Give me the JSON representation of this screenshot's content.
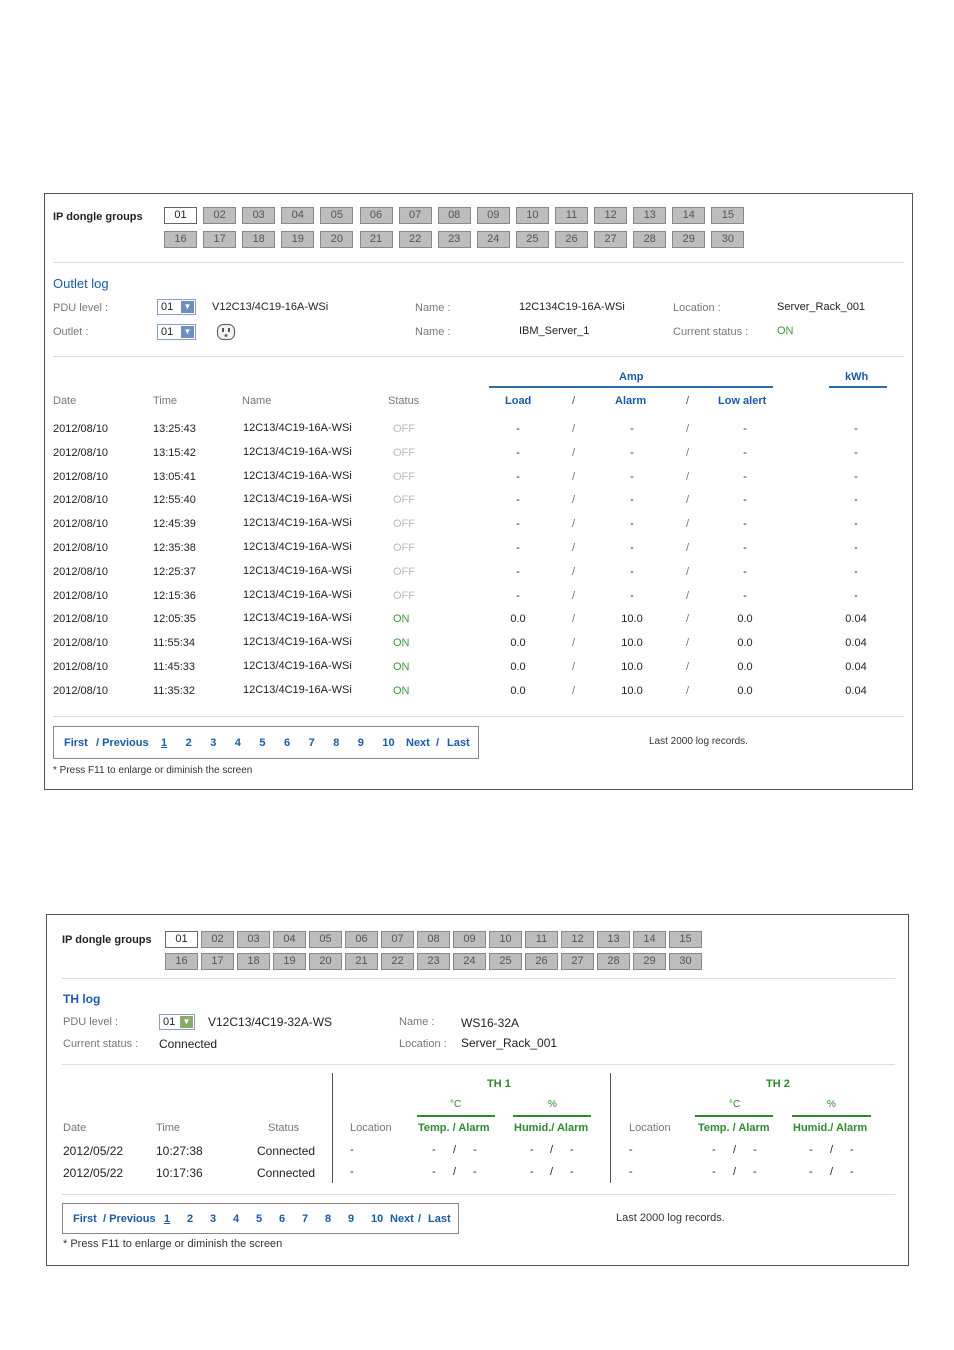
{
  "outlet": {
    "groups_label": "IP dongle groups",
    "groups_row1": [
      "01",
      "02",
      "03",
      "04",
      "05",
      "06",
      "07",
      "08",
      "09",
      "10",
      "11",
      "12",
      "13",
      "14",
      "15"
    ],
    "groups_row2": [
      "16",
      "17",
      "18",
      "19",
      "20",
      "21",
      "22",
      "23",
      "24",
      "25",
      "26",
      "27",
      "28",
      "29",
      "30"
    ],
    "selected_group": "01",
    "section_title": "Outlet log",
    "pdu_label": "PDU level :",
    "pdu_value": "01",
    "pdu_model": "V12C13/4C19-16A-WSi",
    "name_label1": "Name :",
    "name_value1": "12C134C19-16A-WSi",
    "location_label": "Location :",
    "location_value": "Server_Rack_001",
    "outlet_label": "Outlet :",
    "outlet_value": "01",
    "name_label2": "Name :",
    "name_value2": "IBM_Server_1",
    "status_label": "Current status :",
    "status_value": "ON",
    "amp_header": "Amp",
    "kwh_header": "kWh",
    "columns": {
      "date": "Date",
      "time": "Time",
      "name": "Name",
      "status": "Status",
      "load": "Load",
      "sep": "/",
      "alarm": "Alarm",
      "low_alert": "Low alert"
    },
    "rows": [
      {
        "date": "2012/08/10",
        "time": "13:25:43",
        "name": "12C13/4C19-16A-WSi",
        "status": "OFF",
        "load": "-",
        "alarm": "-",
        "low": "-",
        "kwh": "-"
      },
      {
        "date": "2012/08/10",
        "time": "13:15:42",
        "name": "12C13/4C19-16A-WSi",
        "status": "OFF",
        "load": "-",
        "alarm": "-",
        "low": "-",
        "kwh": "-"
      },
      {
        "date": "2012/08/10",
        "time": "13:05:41",
        "name": "12C13/4C19-16A-WSi",
        "status": "OFF",
        "load": "-",
        "alarm": "-",
        "low": "-",
        "kwh": "-"
      },
      {
        "date": "2012/08/10",
        "time": "12:55:40",
        "name": "12C13/4C19-16A-WSi",
        "status": "OFF",
        "load": "-",
        "alarm": "-",
        "low": "-",
        "kwh": "-"
      },
      {
        "date": "2012/08/10",
        "time": "12:45:39",
        "name": "12C13/4C19-16A-WSi",
        "status": "OFF",
        "load": "-",
        "alarm": "-",
        "low": "-",
        "kwh": "-"
      },
      {
        "date": "2012/08/10",
        "time": "12:35:38",
        "name": "12C13/4C19-16A-WSi",
        "status": "OFF",
        "load": "-",
        "alarm": "-",
        "low": "-",
        "kwh": "-"
      },
      {
        "date": "2012/08/10",
        "time": "12:25:37",
        "name": "12C13/4C19-16A-WSi",
        "status": "OFF",
        "load": "-",
        "alarm": "-",
        "low": "-",
        "kwh": "-"
      },
      {
        "date": "2012/08/10",
        "time": "12:15:36",
        "name": "12C13/4C19-16A-WSi",
        "status": "OFF",
        "load": "-",
        "alarm": "-",
        "low": "-",
        "kwh": "-"
      },
      {
        "date": "2012/08/10",
        "time": "12:05:35",
        "name": "12C13/4C19-16A-WSi",
        "status": "ON",
        "load": "0.0",
        "alarm": "10.0",
        "low": "0.0",
        "kwh": "0.04"
      },
      {
        "date": "2012/08/10",
        "time": "11:55:34",
        "name": "12C13/4C19-16A-WSi",
        "status": "ON",
        "load": "0.0",
        "alarm": "10.0",
        "low": "0.0",
        "kwh": "0.04"
      },
      {
        "date": "2012/08/10",
        "time": "11:45:33",
        "name": "12C13/4C19-16A-WSi",
        "status": "ON",
        "load": "0.0",
        "alarm": "10.0",
        "low": "0.0",
        "kwh": "0.04"
      },
      {
        "date": "2012/08/10",
        "time": "11:35:32",
        "name": "12C13/4C19-16A-WSi",
        "status": "ON",
        "load": "0.0",
        "alarm": "10.0",
        "low": "0.0",
        "kwh": "0.04"
      }
    ],
    "pager": {
      "first": "First",
      "prev": "/ Previous",
      "pages": [
        "1",
        "2",
        "3",
        "4",
        "5",
        "6",
        "7",
        "8",
        "9",
        "10"
      ],
      "next": "Next",
      "slash": "/",
      "last": "Last"
    },
    "records_note": "Last 2000 log records.",
    "f11_note": "* Press F11 to enlarge or diminish the screen"
  },
  "th": {
    "groups_label": "IP dongle groups",
    "groups_row1": [
      "01",
      "02",
      "03",
      "04",
      "05",
      "06",
      "07",
      "08",
      "09",
      "10",
      "11",
      "12",
      "13",
      "14",
      "15"
    ],
    "groups_row2": [
      "16",
      "17",
      "18",
      "19",
      "20",
      "21",
      "22",
      "23",
      "24",
      "25",
      "26",
      "27",
      "28",
      "29",
      "30"
    ],
    "selected_group": "01",
    "section_title": "TH log",
    "pdu_label": "PDU level :",
    "pdu_value": "01",
    "pdu_model": "V12C13/4C19-32A-WS",
    "name_label": "Name :",
    "name_value": "WS16-32A",
    "status_label": "Current status :",
    "status_value": "Connected",
    "location_label": "Location :",
    "location_value": "Server_Rack_001",
    "th1": "TH   1",
    "th2": "TH   2",
    "celsius": "°C",
    "percent": "%",
    "columns": {
      "date": "Date",
      "time": "Time",
      "status": "Status",
      "location": "Location",
      "temp": "Temp. / Alarm",
      "humid": "Humid./ Alarm"
    },
    "rows": [
      {
        "date": "2012/05/22",
        "time": "10:27:38",
        "status": "Connected",
        "loc1": "-",
        "t1": "-",
        "ta1": "-",
        "h1": "-",
        "ha1": "-",
        "loc2": "-",
        "t2": "-",
        "ta2": "-",
        "h2": "-",
        "ha2": "-"
      },
      {
        "date": "2012/05/22",
        "time": "10:17:36",
        "status": "Connected",
        "loc1": "-",
        "t1": "-",
        "ta1": "-",
        "h1": "-",
        "ha1": "-",
        "loc2": "-",
        "t2": "-",
        "ta2": "-",
        "h2": "-",
        "ha2": "-"
      }
    ],
    "pager": {
      "first": "First",
      "prev": "/ Previous",
      "pages": [
        "1",
        "2",
        "3",
        "4",
        "5",
        "6",
        "7",
        "8",
        "9",
        "10"
      ],
      "next": "Next",
      "slash": "/",
      "last": "Last"
    },
    "records_note": "Last 2000 log records.",
    "f11_note": "* Press F11 to enlarge or diminish the screen"
  }
}
